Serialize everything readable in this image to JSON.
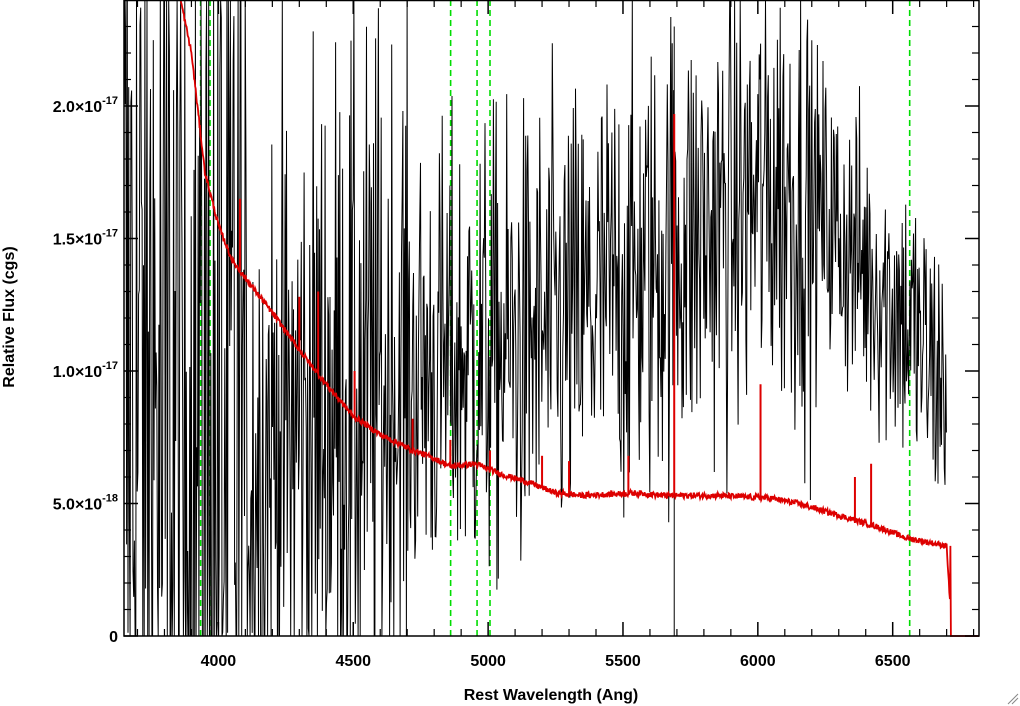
{
  "chart_data": {
    "type": "line",
    "xlabel": "Rest Wavelength (Ang)",
    "ylabel": "Relative Flux (cgs)",
    "xlim": [
      3650,
      6820
    ],
    "ylim": [
      0,
      2.4e-17
    ],
    "x_ticks": [
      {
        "value": 4000,
        "label": "4000"
      },
      {
        "value": 4500,
        "label": "4500"
      },
      {
        "value": 5000,
        "label": "5000"
      },
      {
        "value": 5500,
        "label": "5500"
      },
      {
        "value": 6000,
        "label": "6000"
      },
      {
        "value": 6500,
        "label": "6500"
      }
    ],
    "y_ticks": [
      {
        "value": 0,
        "mantissa": "0",
        "exponent": ""
      },
      {
        "value": 5e-18,
        "mantissa": "5.0×10",
        "exponent": "-18"
      },
      {
        "value": 1e-17,
        "mantissa": "1.0×10",
        "exponent": "-17"
      },
      {
        "value": 1.5e-17,
        "mantissa": "1.5×10",
        "exponent": "-17"
      },
      {
        "value": 2e-17,
        "mantissa": "2.0×10",
        "exponent": "-17"
      }
    ],
    "grid": false,
    "reference_lines": {
      "color": "#00dd00",
      "style": "dashed",
      "x": [
        3934,
        3969,
        4861,
        4959,
        5007,
        6563
      ]
    },
    "series": [
      {
        "color": "#000000",
        "role": "observed spectrum (noisy)",
        "x": [
          3650,
          3750,
          3850,
          3950,
          4050,
          4150,
          4250,
          4350,
          4450,
          4550,
          4650,
          4750,
          4850,
          4950,
          5050,
          5150,
          5250,
          5350,
          5450,
          5550,
          5650,
          5690,
          5750,
          5850,
          5950,
          6050,
          6150,
          6250,
          6350,
          6450,
          6550,
          6650,
          6700
        ],
        "y": [
          9e-18,
          8e-18,
          6.5e-18,
          5e-18,
          6e-18,
          6.5e-18,
          7.5e-18,
          8e-18,
          9e-18,
          9e-18,
          9.5e-18,
          1e-17,
          1.02e-17,
          1.05e-17,
          1.08e-17,
          1.1e-17,
          1.15e-17,
          1.2e-17,
          1.28e-17,
          1.35e-17,
          1.42e-17,
          1.5e-17,
          1.48e-17,
          1.55e-17,
          1.62e-17,
          1.7e-17,
          1.65e-17,
          1.58e-17,
          1.45e-17,
          1.32e-17,
          1.2e-17,
          1e-17,
          9.5e-18
        ]
      },
      {
        "color": "#dd0000",
        "role": "model / template fit",
        "x": [
          3850,
          3900,
          3950,
          4000,
          4050,
          4100,
          4200,
          4300,
          4400,
          4500,
          4600,
          4700,
          4800,
          4860,
          4950,
          5050,
          5150,
          5250,
          5350,
          5450,
          5550,
          5650,
          5750,
          5850,
          5950,
          6050,
          6150,
          6250,
          6350,
          6450,
          6550,
          6650,
          6700,
          6720,
          6800
        ],
        "y": [
          2.45e-17,
          2.2e-17,
          1.75e-17,
          1.55e-17,
          1.42e-17,
          1.35e-17,
          1.22e-17,
          1.08e-17,
          9.5e-18,
          8.3e-18,
          7.6e-18,
          7.1e-18,
          6.7e-18,
          6.4e-18,
          6.5e-18,
          6.1e-18,
          5.8e-18,
          5.4e-18,
          5.3e-18,
          5.35e-18,
          5.4e-18,
          5.3e-18,
          5.3e-18,
          5.3e-18,
          5.25e-18,
          5.2e-18,
          5e-18,
          4.7e-18,
          4.4e-18,
          4.1e-18,
          3.7e-18,
          3.5e-18,
          3.4e-18,
          0,
          0
        ],
        "emission_spikes": [
          {
            "x": 4080,
            "y": 1.65e-17
          },
          {
            "x": 4300,
            "y": 1.28e-17
          },
          {
            "x": 4370,
            "y": 1.3e-17
          },
          {
            "x": 4505,
            "y": 1e-17
          },
          {
            "x": 4720,
            "y": 8.2e-18
          },
          {
            "x": 4860,
            "y": 7.4e-18
          },
          {
            "x": 5007,
            "y": 7e-18
          },
          {
            "x": 5200,
            "y": 6.8e-18
          },
          {
            "x": 5300,
            "y": 6.6e-18
          },
          {
            "x": 5520,
            "y": 6.8e-18
          },
          {
            "x": 5690,
            "y": 1.97e-17
          },
          {
            "x": 6010,
            "y": 9.5e-18
          },
          {
            "x": 6360,
            "y": 6e-18
          },
          {
            "x": 6420,
            "y": 6.5e-18
          }
        ]
      }
    ]
  }
}
